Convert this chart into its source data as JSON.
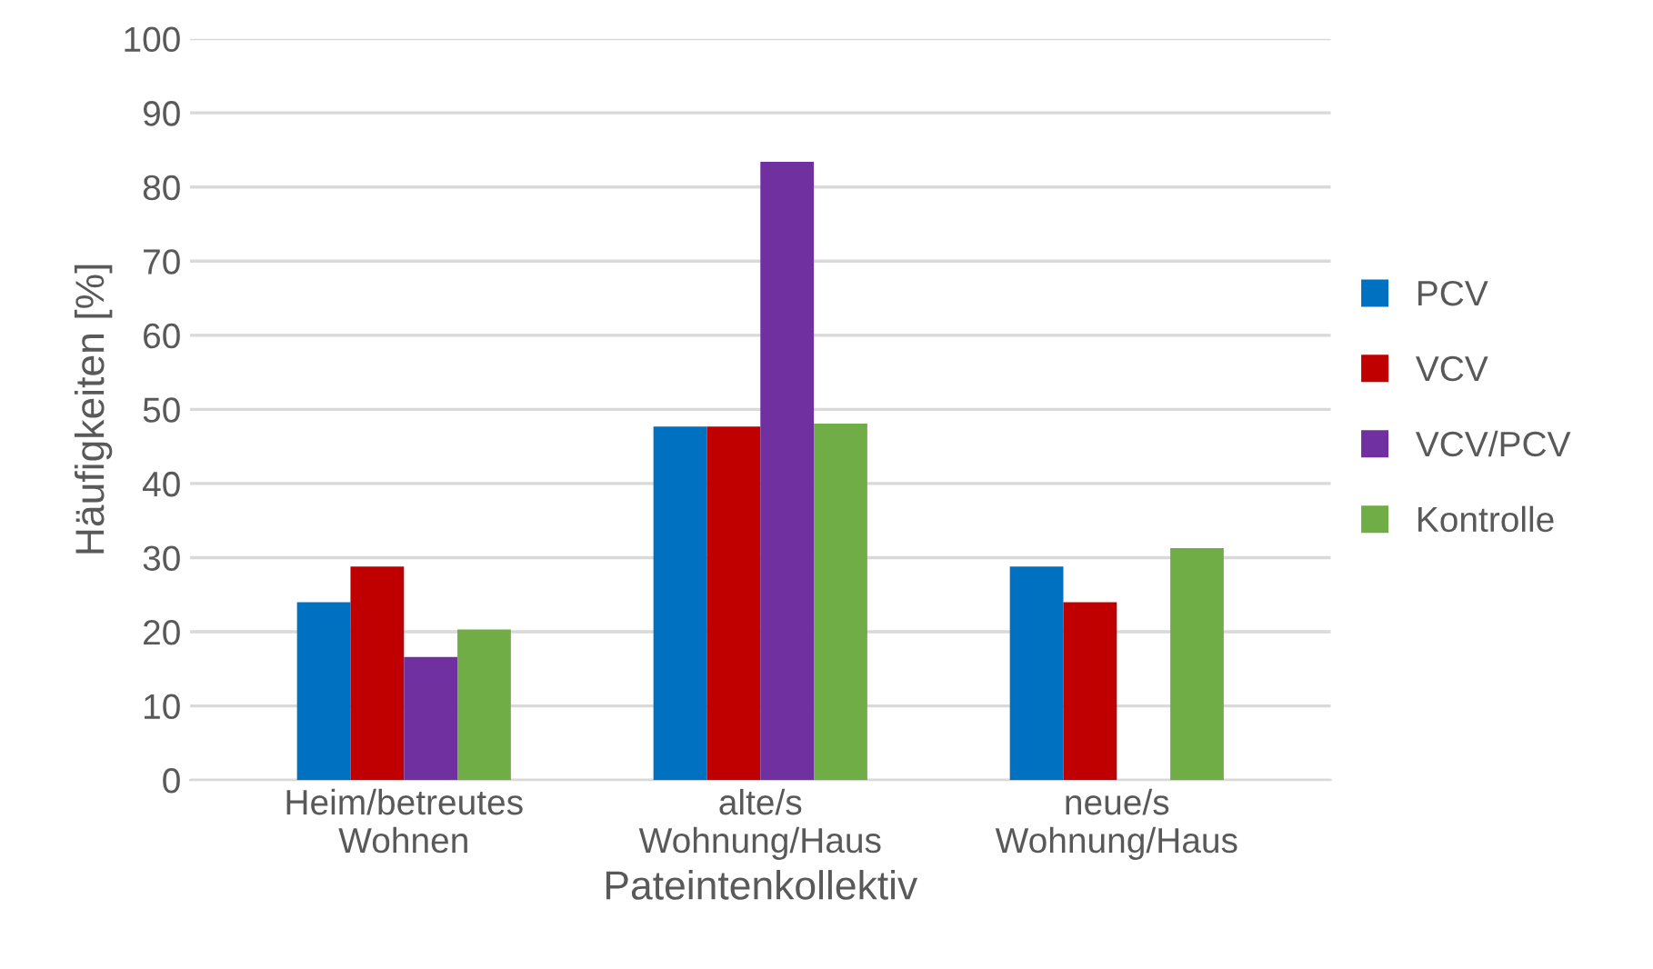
{
  "chart_data": {
    "type": "bar",
    "xlabel": "Pateintenkollektiv",
    "ylabel": "Häufigkeiten [%]",
    "categories": [
      "Heim/betreutes\nWohnen",
      "alte/s\nWohnung/Haus",
      "neue/s\nWohnung/Haus"
    ],
    "series": [
      {
        "name": "PCV",
        "color": "#0070c0",
        "values": [
          24.0,
          47.7,
          28.8
        ]
      },
      {
        "name": "VCV",
        "color": "#c00000",
        "values": [
          28.8,
          47.7,
          24.0
        ]
      },
      {
        "name": "VCV/PCV",
        "color": "#7030a0",
        "values": [
          16.6,
          83.4,
          null
        ]
      },
      {
        "name": "Kontrolle",
        "color": "#70ad47",
        "values": [
          20.3,
          48.1,
          31.3
        ]
      }
    ],
    "ylim": [
      0,
      100
    ],
    "yticks": [
      0,
      10,
      20,
      30,
      40,
      50,
      60,
      70,
      80,
      90,
      100
    ],
    "grid": "y",
    "legend": "right"
  }
}
